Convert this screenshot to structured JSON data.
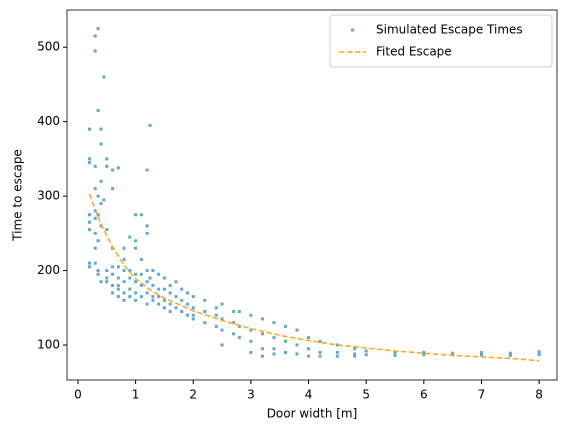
{
  "chart_data": {
    "type": "scatter",
    "xlabel": "Door width [m]",
    "ylabel": "Time to escape",
    "xlim": [
      -0.19,
      8.31
    ],
    "ylim": [
      53,
      550
    ],
    "xticks": [
      0,
      1,
      2,
      3,
      4,
      5,
      6,
      7,
      8
    ],
    "yticks": [
      100,
      200,
      300,
      400,
      500
    ],
    "legend": "upper right",
    "series": [
      {
        "name": "Simulated Escape Times",
        "type": "scatter",
        "color": "#5fa8d3",
        "x": [
          0.2,
          0.2,
          0.2,
          0.2,
          0.2,
          0.2,
          0.2,
          0.2,
          0.3,
          0.3,
          0.3,
          0.3,
          0.3,
          0.3,
          0.3,
          0.3,
          0.3,
          0.35,
          0.35,
          0.35,
          0.35,
          0.35,
          0.35,
          0.35,
          0.4,
          0.4,
          0.4,
          0.4,
          0.4,
          0.4,
          0.45,
          0.45,
          0.5,
          0.5,
          0.5,
          0.5,
          0.5,
          0.5,
          0.6,
          0.6,
          0.6,
          0.6,
          0.6,
          0.6,
          0.6,
          0.7,
          0.7,
          0.7,
          0.7,
          0.7,
          0.7,
          0.8,
          0.8,
          0.8,
          0.8,
          0.8,
          0.8,
          0.9,
          0.9,
          0.9,
          0.9,
          0.9,
          1.0,
          1.0,
          1.0,
          1.0,
          1.0,
          1.0,
          1.0,
          1.1,
          1.1,
          1.1,
          1.1,
          1.1,
          1.2,
          1.2,
          1.2,
          1.2,
          1.2,
          1.2,
          1.2,
          1.25,
          1.25,
          1.3,
          1.3,
          1.3,
          1.3,
          1.4,
          1.4,
          1.4,
          1.4,
          1.5,
          1.5,
          1.5,
          1.5,
          1.6,
          1.6,
          1.6,
          1.6,
          1.7,
          1.7,
          1.7,
          1.8,
          1.8,
          1.8,
          1.9,
          1.9,
          1.9,
          2.0,
          2.0,
          2.0,
          2.0,
          2.2,
          2.2,
          2.2,
          2.4,
          2.4,
          2.4,
          2.5,
          2.5,
          2.5,
          2.5,
          2.7,
          2.7,
          2.7,
          2.8,
          2.8,
          2.8,
          3.0,
          3.0,
          3.0,
          3.0,
          3.2,
          3.2,
          3.2,
          3.2,
          3.4,
          3.4,
          3.4,
          3.4,
          3.6,
          3.6,
          3.6,
          3.8,
          3.8,
          3.8,
          4.0,
          4.0,
          4.0,
          4.2,
          4.2,
          4.2,
          4.5,
          4.5,
          4.5,
          4.8,
          4.8,
          4.8,
          5.0,
          5.0,
          5.5,
          5.5,
          6.0,
          6.0,
          6.5,
          6.5,
          7.0,
          7.0,
          7.5,
          7.5,
          8.0,
          8.0
        ],
        "values": [
          390,
          350,
          345,
          275,
          265,
          255,
          210,
          205,
          515,
          495,
          340,
          310,
          280,
          270,
          250,
          230,
          210,
          525,
          415,
          300,
          275,
          240,
          200,
          195,
          390,
          370,
          320,
          290,
          260,
          185,
          460,
          295,
          350,
          340,
          255,
          200,
          190,
          185,
          335,
          310,
          230,
          205,
          195,
          180,
          170,
          338,
          205,
          190,
          180,
          175,
          165,
          230,
          215,
          200,
          185,
          170,
          160,
          245,
          200,
          190,
          175,
          165,
          275,
          240,
          230,
          195,
          185,
          170,
          160,
          275,
          215,
          195,
          180,
          165,
          335,
          260,
          250,
          200,
          185,
          170,
          155,
          395,
          190,
          200,
          180,
          165,
          160,
          195,
          175,
          165,
          155,
          190,
          175,
          160,
          150,
          180,
          170,
          155,
          145,
          185,
          165,
          150,
          175,
          160,
          145,
          170,
          155,
          140,
          165,
          150,
          140,
          135,
          160,
          145,
          130,
          150,
          140,
          125,
          155,
          135,
          120,
          100,
          145,
          130,
          115,
          145,
          125,
          110,
          140,
          120,
          105,
          90,
          135,
          115,
          95,
          85,
          130,
          110,
          95,
          88,
          125,
          105,
          90,
          120,
          100,
          88,
          110,
          95,
          85,
          105,
          90,
          85,
          100,
          90,
          85,
          95,
          88,
          85,
          92,
          87,
          90,
          86,
          90,
          87,
          89,
          87,
          90,
          87,
          89,
          86,
          91,
          87
        ]
      },
      {
        "name": "Fited Escape",
        "type": "line",
        "color": "#ffa61a",
        "x": [
          0.2,
          0.4,
          0.6,
          0.8,
          1.0,
          1.25,
          1.5,
          2,
          2.5,
          3,
          3.5,
          4,
          4.5,
          5,
          5.5,
          6,
          6.5,
          7,
          7.5,
          8
        ],
        "values": [
          303,
          262,
          232,
          207,
          189,
          174,
          163,
          146,
          133,
          122,
          113,
          106,
          100,
          96,
          92,
          89,
          86,
          84,
          82,
          79
        ]
      }
    ]
  }
}
